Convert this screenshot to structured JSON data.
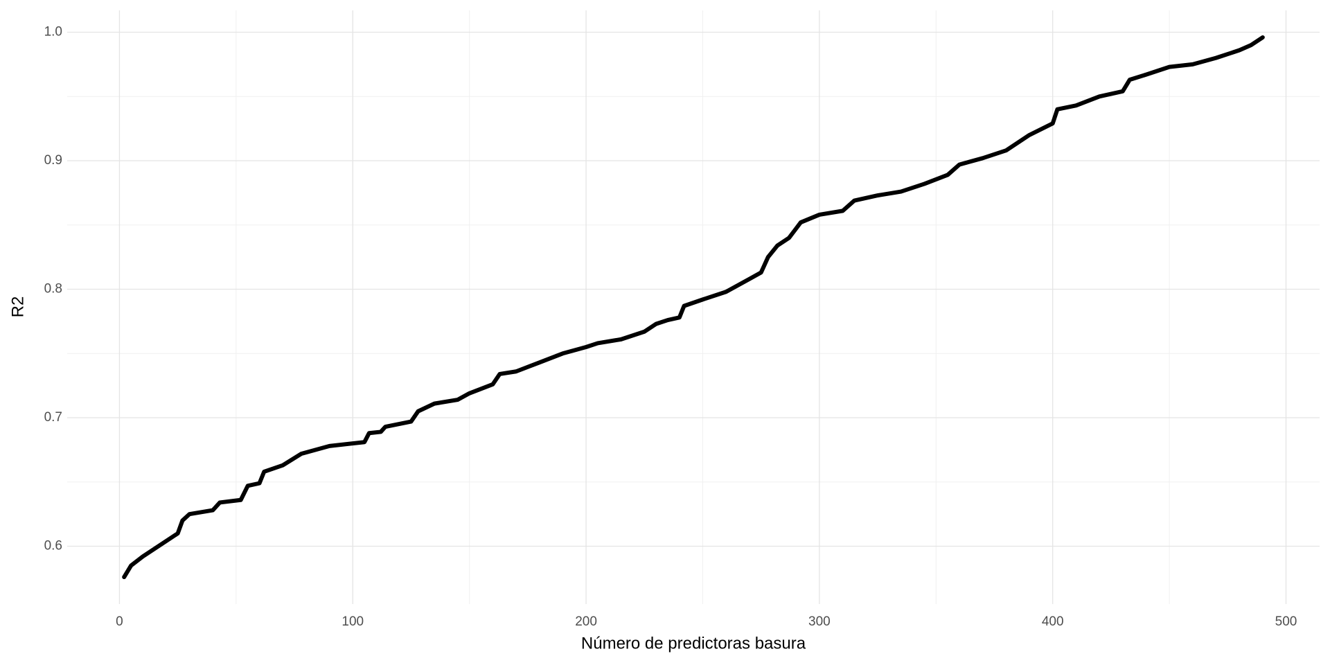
{
  "chart_data": {
    "type": "line",
    "x_label": "Número de predictoras basura",
    "y_label": "R2",
    "x": [
      2,
      5,
      10,
      15,
      20,
      25,
      27,
      30,
      40,
      43,
      52,
      55,
      60,
      62,
      70,
      78,
      90,
      105,
      107,
      112,
      114,
      125,
      128,
      135,
      145,
      150,
      160,
      163,
      170,
      180,
      190,
      200,
      205,
      215,
      225,
      230,
      235,
      240,
      242,
      250,
      260,
      265,
      270,
      275,
      278,
      282,
      287,
      292,
      300,
      310,
      315,
      325,
      335,
      345,
      355,
      360,
      370,
      380,
      390,
      400,
      402,
      410,
      420,
      430,
      433,
      440,
      450,
      460,
      470,
      480,
      485,
      490
    ],
    "series": [
      {
        "name": "R2",
        "color": "#000000",
        "values": [
          0.576,
          0.585,
          0.592,
          0.598,
          0.604,
          0.61,
          0.62,
          0.625,
          0.628,
          0.634,
          0.636,
          0.647,
          0.649,
          0.658,
          0.663,
          0.672,
          0.678,
          0.681,
          0.688,
          0.689,
          0.693,
          0.697,
          0.705,
          0.711,
          0.714,
          0.719,
          0.726,
          0.734,
          0.736,
          0.743,
          0.75,
          0.755,
          0.758,
          0.761,
          0.767,
          0.773,
          0.776,
          0.778,
          0.787,
          0.792,
          0.798,
          0.803,
          0.808,
          0.813,
          0.825,
          0.834,
          0.84,
          0.852,
          0.858,
          0.861,
          0.869,
          0.873,
          0.876,
          0.882,
          0.889,
          0.897,
          0.902,
          0.908,
          0.92,
          0.929,
          0.94,
          0.943,
          0.95,
          0.954,
          0.963,
          0.967,
          0.973,
          0.975,
          0.98,
          0.986,
          0.99,
          0.996
        ]
      }
    ],
    "xlim": [
      -22.4,
      514.4
    ],
    "ylim": [
      0.555,
      1.017
    ],
    "xticks": [
      0,
      100,
      200,
      300,
      400,
      500
    ],
    "yticks": [
      0.6,
      0.7,
      0.8,
      0.9,
      {
        "value": 1.0,
        "label": "1.0"
      }
    ],
    "x_minor_grid": [
      50,
      150,
      250,
      350,
      450
    ],
    "y_minor_grid": [
      0.65,
      0.75,
      0.85,
      0.95
    ],
    "grid": true
  }
}
